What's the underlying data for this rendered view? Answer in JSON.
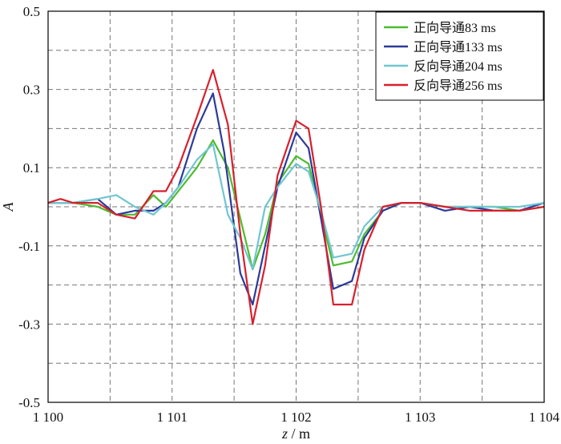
{
  "chart_data": {
    "type": "line",
    "title": "",
    "xlabel_var": "z",
    "xlabel_unit": " / m",
    "ylabel": "A",
    "xlim": [
      1100,
      1104
    ],
    "ylim": [
      -0.5,
      0.5
    ],
    "grid": true,
    "grid_style": "dashed",
    "legend_position": "top-right",
    "x_ticks": [
      1100,
      1100.5,
      1101,
      1101.5,
      1102,
      1102.5,
      1103,
      1103.5,
      1104
    ],
    "x_tick_labels": [
      "1 100",
      "",
      "1 101",
      "",
      "1 102",
      "",
      "1 103",
      "",
      "1 104"
    ],
    "y_ticks": [
      -0.5,
      -0.4,
      -0.3,
      -0.2,
      -0.1,
      0.0,
      0.1,
      0.2,
      0.3,
      0.4,
      0.5
    ],
    "y_tick_labels": [
      "-0.5",
      "",
      "-0.3",
      "",
      "-0.1",
      "",
      "0.1",
      "",
      "0.3",
      "",
      "0.5"
    ],
    "series": [
      {
        "name": "正向导通83 ms",
        "color": "#4dbb2e",
        "x": [
          1100,
          1100.1,
          1100.2,
          1100.4,
          1100.55,
          1100.7,
          1100.85,
          1100.95,
          1101.05,
          1101.2,
          1101.33,
          1101.45,
          1101.55,
          1101.65,
          1101.75,
          1101.85,
          1102.0,
          1102.1,
          1102.2,
          1102.3,
          1102.45,
          1102.55,
          1102.7,
          1102.85,
          1103.0,
          1103.2,
          1103.4,
          1103.6,
          1103.8,
          1104
        ],
        "y": [
          0.01,
          0.01,
          0.01,
          0.0,
          -0.02,
          -0.02,
          0.03,
          0.0,
          0.04,
          0.1,
          0.17,
          0.1,
          -0.03,
          -0.16,
          -0.07,
          0.06,
          0.13,
          0.11,
          -0.02,
          -0.15,
          -0.14,
          -0.07,
          -0.01,
          0.01,
          0.01,
          0.0,
          0.0,
          0.0,
          -0.01,
          0.0
        ]
      },
      {
        "name": "正向导通133 ms",
        "color": "#2b3a9a",
        "x": [
          1100,
          1100.1,
          1100.2,
          1100.4,
          1100.55,
          1100.7,
          1100.85,
          1100.95,
          1101.05,
          1101.2,
          1101.33,
          1101.42,
          1101.55,
          1101.65,
          1101.75,
          1101.85,
          1102.0,
          1102.1,
          1102.2,
          1102.3,
          1102.45,
          1102.55,
          1102.7,
          1102.85,
          1103.0,
          1103.2,
          1103.4,
          1103.6,
          1103.8,
          1104
        ],
        "y": [
          0.01,
          0.01,
          0.01,
          0.02,
          -0.02,
          -0.01,
          -0.01,
          0.01,
          0.05,
          0.2,
          0.29,
          0.14,
          -0.17,
          -0.25,
          -0.1,
          0.05,
          0.19,
          0.15,
          -0.03,
          -0.21,
          -0.19,
          -0.08,
          -0.01,
          0.01,
          0.01,
          -0.01,
          0.0,
          -0.01,
          -0.01,
          0.01
        ]
      },
      {
        "name": "反向导通204 ms",
        "color": "#6fc6d1",
        "x": [
          1100,
          1100.1,
          1100.2,
          1100.4,
          1100.55,
          1100.7,
          1100.85,
          1100.95,
          1101.05,
          1101.2,
          1101.33,
          1101.45,
          1101.55,
          1101.65,
          1101.75,
          1101.85,
          1102.0,
          1102.1,
          1102.2,
          1102.3,
          1102.45,
          1102.55,
          1102.7,
          1102.85,
          1103.0,
          1103.2,
          1103.4,
          1103.6,
          1103.8,
          1104
        ],
        "y": [
          0.01,
          0.01,
          0.01,
          0.02,
          0.03,
          0.0,
          -0.02,
          0.01,
          0.05,
          0.12,
          0.16,
          -0.02,
          -0.08,
          -0.16,
          0.0,
          0.05,
          0.11,
          0.09,
          -0.01,
          -0.13,
          -0.12,
          -0.05,
          0.0,
          0.01,
          0.01,
          0.0,
          0.0,
          0.0,
          0.0,
          0.01
        ]
      },
      {
        "name": "反向导通256 ms",
        "color": "#d8202c",
        "x": [
          1100,
          1100.1,
          1100.2,
          1100.4,
          1100.55,
          1100.7,
          1100.85,
          1100.95,
          1101.05,
          1101.2,
          1101.33,
          1101.45,
          1101.55,
          1101.65,
          1101.75,
          1101.85,
          1102.0,
          1102.1,
          1102.2,
          1102.3,
          1102.45,
          1102.55,
          1102.7,
          1102.85,
          1103.0,
          1103.2,
          1103.4,
          1103.6,
          1103.8,
          1104
        ],
        "y": [
          0.01,
          0.02,
          0.01,
          0.01,
          -0.02,
          -0.03,
          0.04,
          0.04,
          0.1,
          0.23,
          0.35,
          0.21,
          -0.07,
          -0.3,
          -0.15,
          0.08,
          0.22,
          0.2,
          0.0,
          -0.25,
          -0.25,
          -0.11,
          0.0,
          0.01,
          0.01,
          0.0,
          -0.01,
          -0.01,
          -0.01,
          0.0
        ]
      }
    ]
  }
}
